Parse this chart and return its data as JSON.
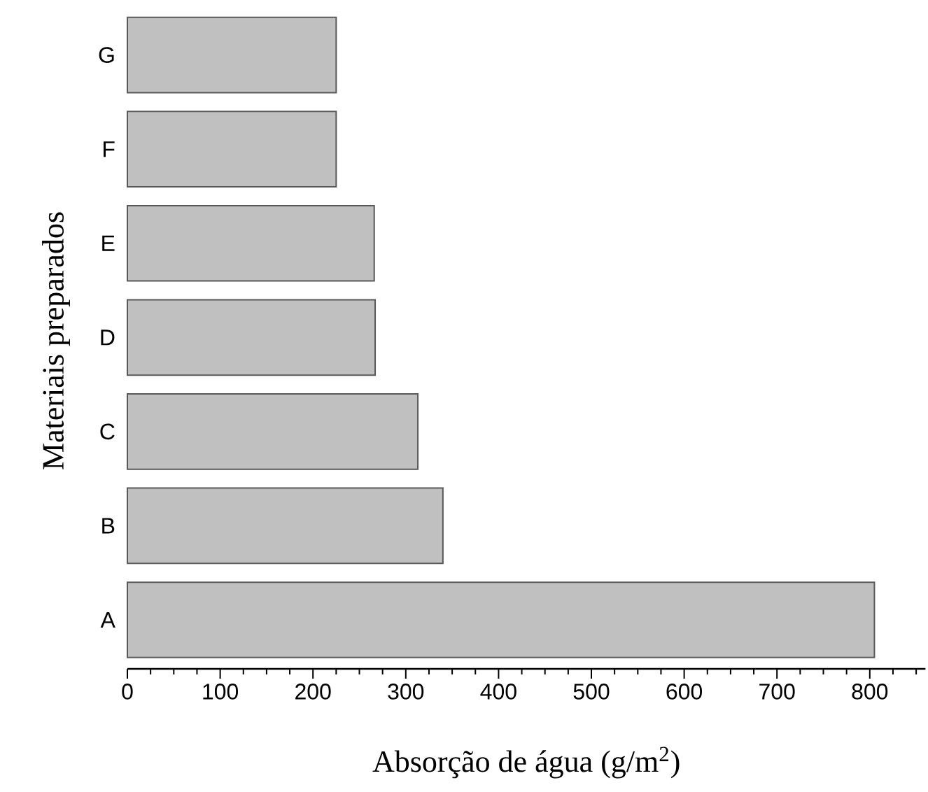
{
  "chart_data": {
    "type": "bar",
    "orientation": "horizontal",
    "xlabel": "Absorção de água (g/m$^{2}$)",
    "ylabel": "Materiais preparados",
    "categories": [
      "G",
      "F",
      "E",
      "D",
      "C",
      "B",
      "A"
    ],
    "values": [
      225,
      225,
      266,
      267,
      313,
      340,
      805
    ],
    "color": "#c0c0c0",
    "xlim": [
      0,
      860
    ],
    "xticks": [
      0,
      {
        "value": 25,
        "label": null
      },
      {
        "value": 50,
        "label": null
      },
      {
        "value": 75,
        "label": null
      },
      100,
      {
        "value": 125,
        "label": null
      },
      {
        "value": 150,
        "label": null
      },
      {
        "value": 175,
        "label": null
      },
      200,
      {
        "value": 225,
        "label": null
      },
      {
        "value": 250,
        "label": null
      },
      {
        "value": 275,
        "label": null
      },
      300,
      {
        "value": 325,
        "label": null
      },
      {
        "value": 350,
        "label": null
      },
      {
        "value": 375,
        "label": null
      },
      400,
      {
        "value": 425,
        "label": null
      },
      {
        "value": 450,
        "label": null
      },
      {
        "value": 475,
        "label": null
      },
      500,
      {
        "value": 525,
        "label": null
      },
      {
        "value": 550,
        "label": null
      },
      {
        "value": 575,
        "label": null
      },
      600,
      {
        "value": 625,
        "label": null
      },
      {
        "value": 650,
        "label": null
      },
      {
        "value": 675,
        "label": null
      },
      700,
      {
        "value": 725,
        "label": null
      },
      {
        "value": 750,
        "label": null
      },
      {
        "value": 775,
        "label": null
      },
      800,
      {
        "value": 825,
        "label": null
      },
      {
        "value": 850,
        "label": null
      }
    ]
  }
}
